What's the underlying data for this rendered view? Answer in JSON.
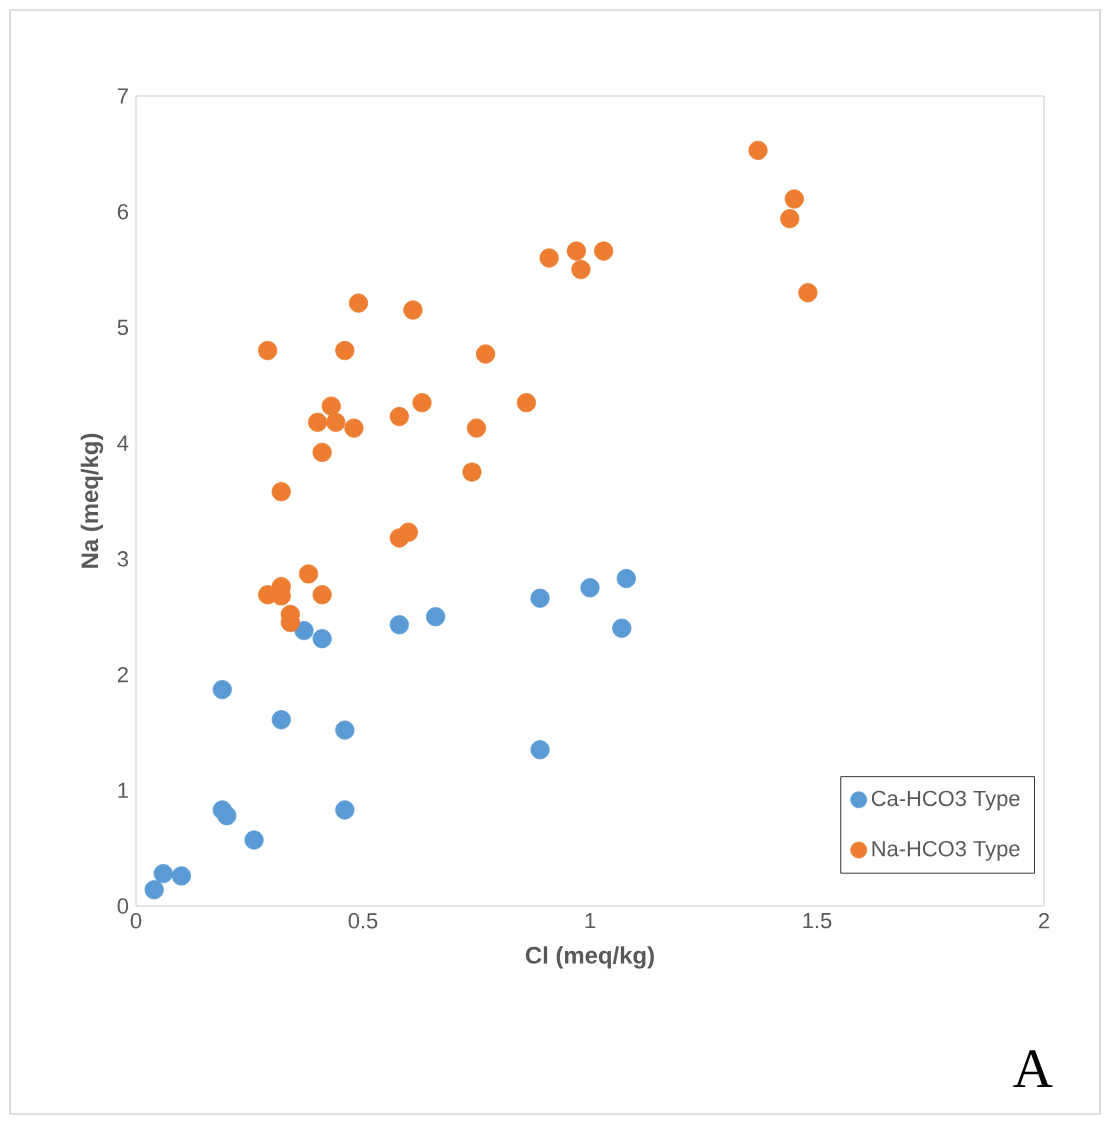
{
  "chart_data": {
    "type": "scatter",
    "xlabel": "Cl (meq/kg)",
    "ylabel": "Na (meq/kg)",
    "xlim": [
      0,
      2
    ],
    "ylim": [
      0,
      7
    ],
    "xticks": [
      0,
      0.5,
      1,
      1.5,
      2
    ],
    "yticks": [
      0,
      1,
      2,
      3,
      4,
      5,
      6,
      7
    ],
    "grid": false,
    "legend": "bottom right",
    "marker": "circle",
    "annotations": [
      "A"
    ],
    "series": [
      {
        "name": "Ca-HCO3 Type",
        "color": "#5b9bd5",
        "x": [
          0.04,
          0.06,
          0.1,
          0.26,
          0.19,
          0.2,
          0.46,
          0.19,
          0.32,
          0.46,
          0.89,
          0.37,
          0.41,
          0.58,
          0.66,
          0.89,
          1.0,
          1.08,
          1.07
        ],
        "values": [
          0.14,
          0.28,
          0.26,
          0.57,
          0.83,
          0.78,
          0.83,
          1.87,
          1.61,
          1.52,
          1.35,
          2.38,
          2.31,
          2.43,
          2.5,
          2.66,
          2.75,
          2.83,
          2.4
        ]
      },
      {
        "name": "Na-HCO3 Type",
        "color": "#ed7d31",
        "x": [
          0.91,
          0.97,
          0.98,
          1.03,
          0.49,
          0.61,
          0.29,
          0.46,
          0.77,
          0.43,
          0.4,
          0.44,
          0.48,
          0.58,
          0.63,
          0.86,
          0.75,
          0.41,
          0.74,
          0.32,
          0.58,
          0.6,
          0.38,
          0.29,
          0.32,
          0.32,
          0.41,
          0.34,
          0.34,
          1.37,
          1.45,
          1.44,
          1.48
        ],
        "values": [
          5.6,
          5.66,
          5.5,
          5.66,
          5.21,
          5.15,
          4.8,
          4.8,
          4.77,
          4.32,
          4.18,
          4.18,
          4.13,
          4.23,
          4.35,
          4.35,
          4.13,
          3.92,
          3.75,
          3.58,
          3.18,
          3.23,
          2.87,
          2.69,
          2.76,
          2.68,
          2.69,
          2.52,
          2.45,
          6.53,
          6.11,
          5.94,
          5.3
        ]
      }
    ]
  }
}
